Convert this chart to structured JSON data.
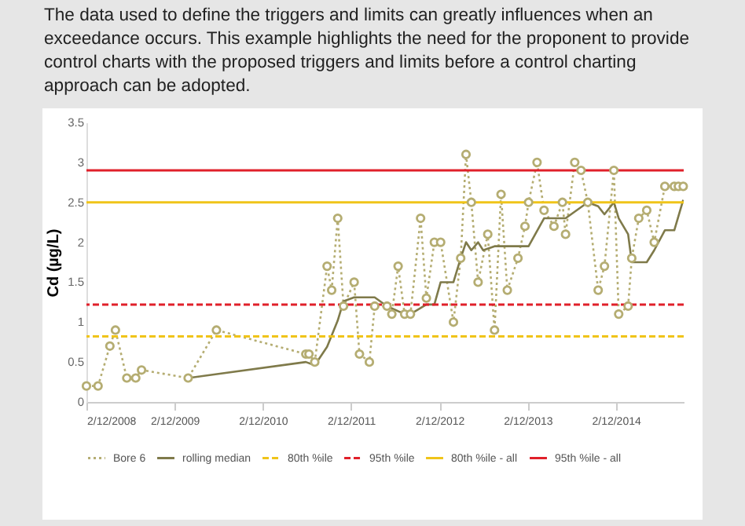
{
  "chart_data": {
    "type": "line",
    "title": "The data used to define the triggers and limits can greatly influences when an exceedance occurs. This example highlights the need for the proponent to provide control charts with the proposed triggers and limits before a control charting approach can be adopted.",
    "ylabel": "Cd (µg/L)",
    "x": [
      "2008-12-02",
      "2009-01-19",
      "2009-03-09",
      "2009-04-01",
      "2009-05-18",
      "2009-06-24",
      "2009-07-18",
      "2010-01-27",
      "2010-05-24",
      "2011-05-29",
      "2011-06-11",
      "2011-07-05",
      "2011-08-25",
      "2011-09-13",
      "2011-10-08",
      "2011-11-01",
      "2011-12-15",
      "2012-01-06",
      "2012-02-16",
      "2012-03-09",
      "2012-04-29",
      "2012-05-19",
      "2012-06-14",
      "2012-07-11",
      "2012-08-04",
      "2012-09-15",
      "2012-10-09",
      "2012-11-11",
      "2012-12-07",
      "2013-01-29",
      "2013-02-28",
      "2013-03-22",
      "2013-04-13",
      "2013-05-11",
      "2013-06-20",
      "2013-07-18",
      "2013-08-14",
      "2013-09-09",
      "2013-10-23",
      "2013-11-21",
      "2013-12-06",
      "2014-01-10",
      "2014-02-08",
      "2014-03-21",
      "2014-04-25",
      "2014-05-08",
      "2014-06-15",
      "2014-07-11",
      "2014-08-08",
      "2014-09-20",
      "2014-10-16",
      "2014-11-24",
      "2014-12-14",
      "2015-01-22",
      "2015-02-06",
      "2015-03-07",
      "2015-04-09",
      "2015-05-10",
      "2015-06-23",
      "2015-08-01",
      "2015-08-18",
      "2015-09-07"
    ],
    "series": [
      {
        "name": "Bore 6",
        "type": "line",
        "color": "#b5ad72",
        "marker": "circle",
        "line_style": "dotted",
        "values": [
          0.2,
          0.2,
          0.7,
          0.9,
          0.3,
          0.3,
          0.4,
          0.3,
          0.9,
          0.6,
          0.6,
          0.5,
          1.7,
          1.4,
          2.3,
          1.2,
          1.5,
          0.6,
          0.5,
          1.2,
          1.2,
          1.1,
          1.7,
          1.1,
          1.1,
          2.3,
          1.3,
          2.0,
          2.0,
          1.0,
          1.8,
          3.1,
          2.5,
          1.5,
          2.1,
          0.9,
          2.6,
          1.4,
          1.8,
          2.2,
          2.5,
          3.0,
          2.4,
          2.2,
          2.5,
          2.1,
          3.0,
          2.9,
          2.5,
          1.4,
          1.7,
          2.9,
          1.1,
          1.2,
          1.8,
          2.3,
          2.4,
          2.0,
          2.7,
          2.7,
          2.7,
          2.7
        ]
      },
      {
        "name": "rolling median",
        "type": "line",
        "color": "#7f7a4a",
        "marker": "none",
        "line_style": "solid",
        "x": [
          "2010-01-27",
          "2011-05-29",
          "2011-07-05",
          "2011-08-25",
          "2011-10-08",
          "2011-11-01",
          "2011-12-15",
          "2012-03-09",
          "2012-04-29",
          "2012-07-11",
          "2012-08-04",
          "2012-10-09",
          "2012-11-11",
          "2012-12-07",
          "2013-01-29",
          "2013-02-28",
          "2013-03-22",
          "2013-04-13",
          "2013-05-11",
          "2013-06-01",
          "2013-07-18",
          "2013-12-06",
          "2014-02-08",
          "2014-05-08",
          "2014-08-08",
          "2014-09-20",
          "2014-10-16",
          "2014-11-24",
          "2014-12-14",
          "2015-01-22",
          "2015-02-06",
          "2015-04-09",
          "2015-05-10",
          "2015-06-23",
          "2015-08-01",
          "2015-09-07"
        ],
        "values": [
          0.3,
          0.5,
          0.46,
          0.69,
          1.02,
          1.26,
          1.31,
          1.31,
          1.2,
          1.1,
          1.1,
          1.22,
          1.22,
          1.5,
          1.5,
          1.8,
          2.0,
          1.9,
          2.0,
          1.9,
          1.95,
          1.95,
          2.3,
          2.3,
          2.5,
          2.45,
          2.35,
          2.5,
          2.3,
          2.1,
          1.75,
          1.75,
          1.9,
          2.15,
          2.15,
          2.53
        ]
      }
    ],
    "ref_lines": [
      {
        "axis": "y",
        "value": 0.82,
        "label": "80th %ile",
        "color": "#f0c419",
        "line_style": "dashed"
      },
      {
        "axis": "y",
        "value": 1.22,
        "label": "95th %ile",
        "color": "#e0202a",
        "line_style": "dashed"
      },
      {
        "axis": "y",
        "value": 2.5,
        "label": "80th %ile - all",
        "color": "#f0c419",
        "line_style": "solid"
      },
      {
        "axis": "y",
        "value": 2.9,
        "label": "95th %ile - all",
        "color": "#e0202a",
        "line_style": "solid"
      }
    ],
    "xlim": [
      "2008-12-02",
      "2015-09-09"
    ],
    "xticks": [
      {
        "value": "2008-12-02",
        "label": "2/12/2008"
      },
      {
        "value": "2009-12-02",
        "label": "2/12/2009"
      },
      {
        "value": "2010-12-02",
        "label": "2/12/2010"
      },
      {
        "value": "2011-12-02",
        "label": "2/12/2011"
      },
      {
        "value": "2012-12-02",
        "label": "2/12/2012"
      },
      {
        "value": "2013-12-02",
        "label": "2/12/2013"
      },
      {
        "value": "2014-12-02",
        "label": "2/12/2014"
      }
    ],
    "ylim": [
      0,
      3.5
    ],
    "yticks": [
      0,
      0.5,
      1,
      1.5,
      2,
      2.5,
      3,
      3.5
    ],
    "grid": false,
    "legend": "bottom"
  }
}
